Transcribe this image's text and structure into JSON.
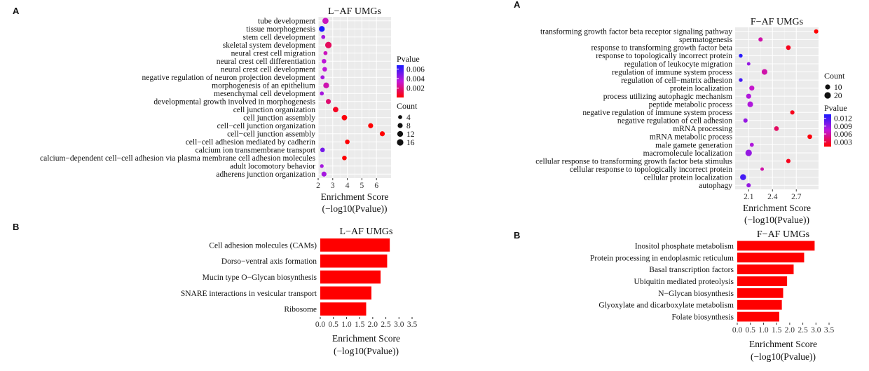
{
  "panels": [
    "A",
    "B",
    "A",
    "B"
  ],
  "chart_data": [
    {
      "type": "scatter",
      "title": "L−AF UMGs",
      "xlabel": "Enrichment Score",
      "xlabel2": "(−log10(Pvalue))",
      "xlim": [
        2,
        7
      ],
      "xticks": [
        2,
        3,
        4,
        5,
        6
      ],
      "categories": [
        "tube development",
        "tissue morphogenesis",
        "stem cell development",
        "skeletal system development",
        "neural crest cell migration",
        "neural crest cell differentiation",
        "neural crest cell development",
        "negative regulation of neuron projection development",
        "morphogenesis of an epithelium",
        "mesenchymal cell development",
        "developmental growth involved in morphogenesis",
        "cell junction organization",
        "cell junction assembly",
        "cell−cell junction organization",
        "cell−cell junction assembly",
        "cell−cell adhesion mediated by cadherin",
        "calcium ion transmembrane transport",
        "calcium−dependent cell−cell adhesion via plasma membrane cell adhesion molecules",
        "adult locomotory behavior",
        "adherens junction organization"
      ],
      "x": [
        2.5,
        2.25,
        2.35,
        2.7,
        2.5,
        2.4,
        2.45,
        2.3,
        2.55,
        2.25,
        2.7,
        3.2,
        3.8,
        5.6,
        6.4,
        4.0,
        2.3,
        3.8,
        2.25,
        2.4
      ],
      "count": [
        14,
        12,
        4,
        16,
        4,
        6,
        6,
        4,
        12,
        4,
        8,
        10,
        10,
        8,
        8,
        6,
        6,
        6,
        3,
        8
      ],
      "pvalue": [
        0.003,
        0.0068,
        0.004,
        0.0015,
        0.003,
        0.0035,
        0.0035,
        0.004,
        0.0028,
        0.004,
        0.0018,
        0.0006,
        0.0002,
        0.0001,
        5e-05,
        0.0001,
        0.005,
        0.0001,
        0.004,
        0.004
      ],
      "legend": {
        "pvalue_title": "Pvalue",
        "pvalue_ticks": [
          0.006,
          0.004,
          0.002
        ],
        "pvalue_range": [
          5e-05,
          0.0068
        ],
        "count_title": "Count",
        "count_ticks": [
          4,
          8,
          12,
          16
        ]
      }
    },
    {
      "type": "bar",
      "orientation": "horizontal",
      "title": "L−AF UMGs",
      "xlabel": "Enrichment Score",
      "xlabel2": "(−log10(Pvalue))",
      "xlim": [
        0,
        3.5
      ],
      "xticks": [
        0.0,
        0.5,
        1.0,
        1.5,
        2.0,
        2.5,
        3.0,
        3.5
      ],
      "categories": [
        "Cell adhesion molecules (CAMs)",
        "Dorso−ventral axis formation",
        "Mucin type O−Glycan biosynthesis",
        "SNARE interactions in vesicular transport",
        "Ribosome"
      ],
      "values": [
        2.65,
        2.55,
        2.3,
        1.95,
        1.75
      ],
      "bar_color": "#ff0000"
    },
    {
      "type": "scatter",
      "title": "F−AF UMGs",
      "xlabel": "Enrichment Score",
      "xlabel2": "(−log10(Pvalue))",
      "xlim": [
        1.93,
        2.98
      ],
      "xticks": [
        2.1,
        2.4,
        2.7
      ],
      "categories": [
        "transforming growth factor beta receptor signaling pathway",
        "spermatogenesis",
        "response to transforming growth factor beta",
        "response to topologically incorrect protein",
        "regulation of leukocyte migration",
        "regulation of immune system process",
        "regulation of cell−matrix adhesion",
        "protein localization",
        "process utilizing autophagic mechanism",
        "peptide metabolic process",
        "negative regulation of immune system process",
        "negative regulation of cell adhesion",
        "mRNA processing",
        "mRNA metabolic process",
        "male gamete generation",
        "macromolecule localization",
        "cellular response to transforming growth factor beta stimulus",
        "cellular response to topologically incorrect protein",
        "cellular protein localization",
        "autophagy"
      ],
      "x": [
        2.95,
        2.25,
        2.6,
        2.0,
        2.1,
        2.3,
        2.0,
        2.14,
        2.1,
        2.12,
        2.65,
        2.06,
        2.45,
        2.87,
        2.14,
        2.1,
        2.6,
        2.27,
        2.03,
        2.1
      ],
      "count": [
        6,
        6,
        8,
        4,
        3,
        14,
        4,
        10,
        10,
        14,
        6,
        6,
        8,
        8,
        5,
        20,
        6,
        3,
        16,
        6
      ],
      "pvalue": [
        0.0012,
        0.006,
        0.002,
        0.013,
        0.009,
        0.006,
        0.012,
        0.007,
        0.008,
        0.008,
        0.002,
        0.009,
        0.004,
        0.0015,
        0.008,
        0.009,
        0.002,
        0.006,
        0.012,
        0.009
      ],
      "legend": {
        "count_title": "Count",
        "count_ticks": [
          10,
          20
        ],
        "pvalue_title": "Pvalue",
        "pvalue_ticks": [
          0.012,
          0.009,
          0.006,
          0.003
        ],
        "pvalue_range": [
          0.0012,
          0.0135
        ]
      }
    },
    {
      "type": "bar",
      "orientation": "horizontal",
      "title": "F−AF UMGs",
      "xlabel": "Enrichment Score",
      "xlabel2": "(−log10(Pvalue))",
      "xlim": [
        0,
        3.5
      ],
      "xticks": [
        0.0,
        0.5,
        1.0,
        1.5,
        2.0,
        2.5,
        3.0,
        3.5
      ],
      "categories": [
        "Inositol phosphate metabolism",
        "Protein processing in endoplasmic reticulum",
        "Basal transcription factors",
        "Ubiquitin mediated proteolysis",
        "N−Glycan biosynthesis",
        "Glyoxylate and dicarboxylate metabolism",
        "Folate biosynthesis"
      ],
      "values": [
        2.95,
        2.55,
        2.15,
        1.9,
        1.75,
        1.7,
        1.6
      ],
      "bar_color": "#ff0000"
    }
  ],
  "colors": {
    "low_p": "#ff0000",
    "high_p": "#1a1aff",
    "grid_bg": "#ebebeb"
  }
}
